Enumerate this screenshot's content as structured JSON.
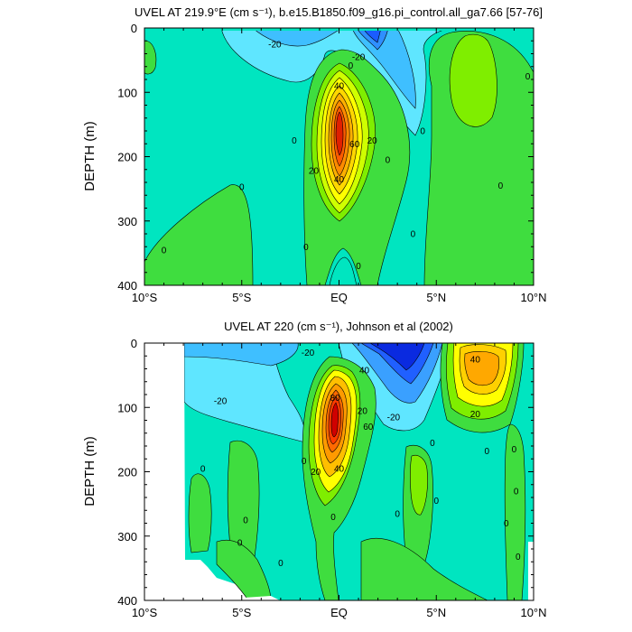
{
  "chart_data": [
    {
      "type": "heatmap",
      "title": "UVEL AT 219.9°E (cm s⁻¹), b.e15.B1850.f09_g16.pi_control.all_ga7.66 [57-76]",
      "xlabel": "",
      "ylabel": "DEPTH (m)",
      "x_ticks": [
        "10°S",
        "5°S",
        "EQ",
        "5°N",
        "10°N"
      ],
      "x_tick_values": [
        -10,
        -5,
        0,
        5,
        10
      ],
      "y_ticks": [
        "0",
        "100",
        "200",
        "300",
        "400"
      ],
      "y_tick_values": [
        0,
        100,
        200,
        300,
        400
      ],
      "xlim": [
        -10,
        10
      ],
      "ylim": [
        0,
        400
      ],
      "y_inverted": true,
      "contour_interval": 10,
      "colors": {
        "background": "#00e5c0",
        "neg_light": "#5fe6ff",
        "neg_mid": "#3aa0ff",
        "pos_green": "#3fdd3f",
        "pos_light_green": "#7fee00",
        "yellow": "#ffff00",
        "orange": "#ff9a00",
        "red": "#e02000"
      },
      "contour_labels": [
        {
          "text": "-20",
          "x": -3.3,
          "y": 25
        },
        {
          "text": "-20",
          "x": 1.0,
          "y": 45
        },
        {
          "text": "0",
          "x": 0.6,
          "y": 58
        },
        {
          "text": "40",
          "x": 0.0,
          "y": 90
        },
        {
          "text": "60",
          "x": 0.8,
          "y": 180
        },
        {
          "text": "20",
          "x": 1.7,
          "y": 175
        },
        {
          "text": "0",
          "x": -2.3,
          "y": 175
        },
        {
          "text": "0",
          "x": 2.5,
          "y": 205
        },
        {
          "text": "20",
          "x": -1.3,
          "y": 222
        },
        {
          "text": "40",
          "x": 0.0,
          "y": 235
        },
        {
          "text": "0",
          "x": 4.3,
          "y": 160
        },
        {
          "text": "0",
          "x": -5.0,
          "y": 247
        },
        {
          "text": "0",
          "x": 8.3,
          "y": 245
        },
        {
          "text": "0",
          "x": 9.7,
          "y": 75
        },
        {
          "text": "0",
          "x": -9.0,
          "y": 345
        },
        {
          "text": "0",
          "x": -1.7,
          "y": 340
        },
        {
          "text": "0",
          "x": 3.8,
          "y": 320
        },
        {
          "text": "0",
          "x": 1.0,
          "y": 370
        }
      ]
    },
    {
      "type": "heatmap",
      "title": "UVEL AT 220 (cm s⁻¹), Johnson et al (2002)",
      "xlabel": "",
      "ylabel": "DEPTH (m)",
      "x_ticks": [
        "10°S",
        "5°S",
        "EQ",
        "5°N",
        "10°N"
      ],
      "x_tick_values": [
        -10,
        -5,
        0,
        5,
        10
      ],
      "y_ticks": [
        "0",
        "100",
        "200",
        "300",
        "400"
      ],
      "y_tick_values": [
        0,
        100,
        200,
        300,
        400
      ],
      "xlim": [
        -10,
        10
      ],
      "ylim": [
        0,
        400
      ],
      "y_inverted": true,
      "contour_interval": 10,
      "colors": {
        "background": "#00e5c0",
        "neg_light": "#5fe6ff",
        "neg_mid": "#3aa0ff",
        "neg_dark": "#1a3cff",
        "neg_deepest": "#0010c8",
        "pos_green": "#3fdd3f",
        "pos_light_green": "#7fee00",
        "yellow": "#ffff00",
        "orange": "#ff9a00",
        "red": "#e02000",
        "dark_red": "#d00000"
      },
      "contour_labels": [
        {
          "text": "-20",
          "x": -1.6,
          "y": 15
        },
        {
          "text": "40",
          "x": 1.3,
          "y": 42
        },
        {
          "text": "40",
          "x": 7.0,
          "y": 25
        },
        {
          "text": "-20",
          "x": -6.1,
          "y": 90
        },
        {
          "text": "80",
          "x": -0.2,
          "y": 85
        },
        {
          "text": "20",
          "x": 1.2,
          "y": 105
        },
        {
          "text": "60",
          "x": 1.5,
          "y": 130
        },
        {
          "text": "-20",
          "x": 2.8,
          "y": 115
        },
        {
          "text": "20",
          "x": 7.0,
          "y": 110
        },
        {
          "text": "0",
          "x": 4.8,
          "y": 155
        },
        {
          "text": "0",
          "x": 9.0,
          "y": 165
        },
        {
          "text": "0",
          "x": 7.6,
          "y": 168
        },
        {
          "text": "0",
          "x": -1.8,
          "y": 183
        },
        {
          "text": "20",
          "x": -1.2,
          "y": 200
        },
        {
          "text": "40",
          "x": 0.0,
          "y": 195
        },
        {
          "text": "0",
          "x": -7.0,
          "y": 195
        },
        {
          "text": "0",
          "x": 5.0,
          "y": 245
        },
        {
          "text": "0",
          "x": 9.1,
          "y": 230
        },
        {
          "text": "0",
          "x": -4.8,
          "y": 275
        },
        {
          "text": "0",
          "x": -0.3,
          "y": 270
        },
        {
          "text": "0",
          "x": 3.0,
          "y": 265
        },
        {
          "text": "0",
          "x": 8.6,
          "y": 280
        },
        {
          "text": "0",
          "x": -5.1,
          "y": 310
        },
        {
          "text": "0",
          "x": -3.0,
          "y": 342
        },
        {
          "text": "0",
          "x": 9.2,
          "y": 332
        }
      ]
    }
  ]
}
